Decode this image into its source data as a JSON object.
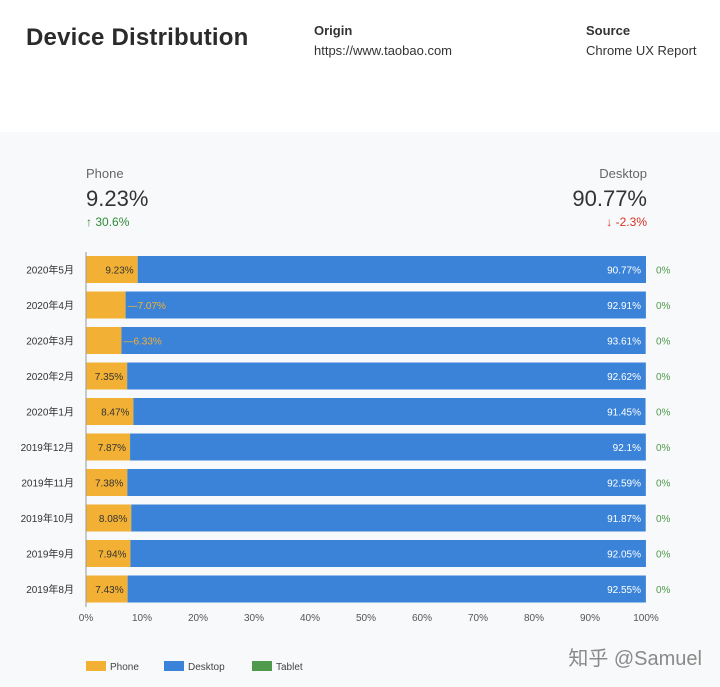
{
  "header": {
    "title": "Device Distribution",
    "origin_label": "Origin",
    "origin_value": "https://www.taobao.com",
    "source_label": "Source",
    "source_value": "Chrome UX Report"
  },
  "summary": {
    "phone_label": "Phone",
    "phone_value": "9.23%",
    "phone_change": "30.6%",
    "desktop_label": "Desktop",
    "desktop_value": "90.77%",
    "desktop_change": "-2.3%"
  },
  "chart_data": {
    "type": "bar",
    "orientation": "horizontal",
    "stacked": true,
    "categories": [
      "2020年5月",
      "2020年4月",
      "2020年3月",
      "2020年2月",
      "2020年1月",
      "2019年12月",
      "2019年11月",
      "2019年10月",
      "2019年9月",
      "2019年8月"
    ],
    "series": [
      {
        "name": "Phone",
        "color": "#f2b134",
        "values": [
          9.23,
          7.07,
          6.33,
          7.35,
          8.47,
          7.87,
          7.38,
          8.08,
          7.94,
          7.43
        ],
        "labels": [
          "9.23%",
          "7.07%",
          "6.33%",
          "7.35%",
          "8.47%",
          "7.87%",
          "7.38%",
          "8.08%",
          "7.94%",
          "7.43%"
        ]
      },
      {
        "name": "Desktop",
        "color": "#3a83d9",
        "values": [
          90.77,
          92.91,
          93.61,
          92.62,
          91.45,
          92.1,
          92.59,
          91.87,
          92.05,
          92.55
        ],
        "labels": [
          "90.77%",
          "92.91%",
          "93.61%",
          "92.62%",
          "91.45%",
          "92.1%",
          "92.59%",
          "91.87%",
          "92.05%",
          "92.55%"
        ]
      },
      {
        "name": "Tablet",
        "color": "#4f9a4c",
        "values": [
          0,
          0,
          0,
          0,
          0,
          0,
          0,
          0,
          0,
          0
        ],
        "labels": [
          "0%",
          "0%",
          "0%",
          "0%",
          "0%",
          "0%",
          "0%",
          "0%",
          "0%",
          "0%"
        ]
      }
    ],
    "x_ticks": [
      "0%",
      "10%",
      "20%",
      "30%",
      "40%",
      "50%",
      "60%",
      "70%",
      "80%",
      "90%",
      "100%"
    ],
    "xlim": [
      0,
      100
    ],
    "legend_position": "bottom-left"
  },
  "watermark": "知乎 @Samuel"
}
